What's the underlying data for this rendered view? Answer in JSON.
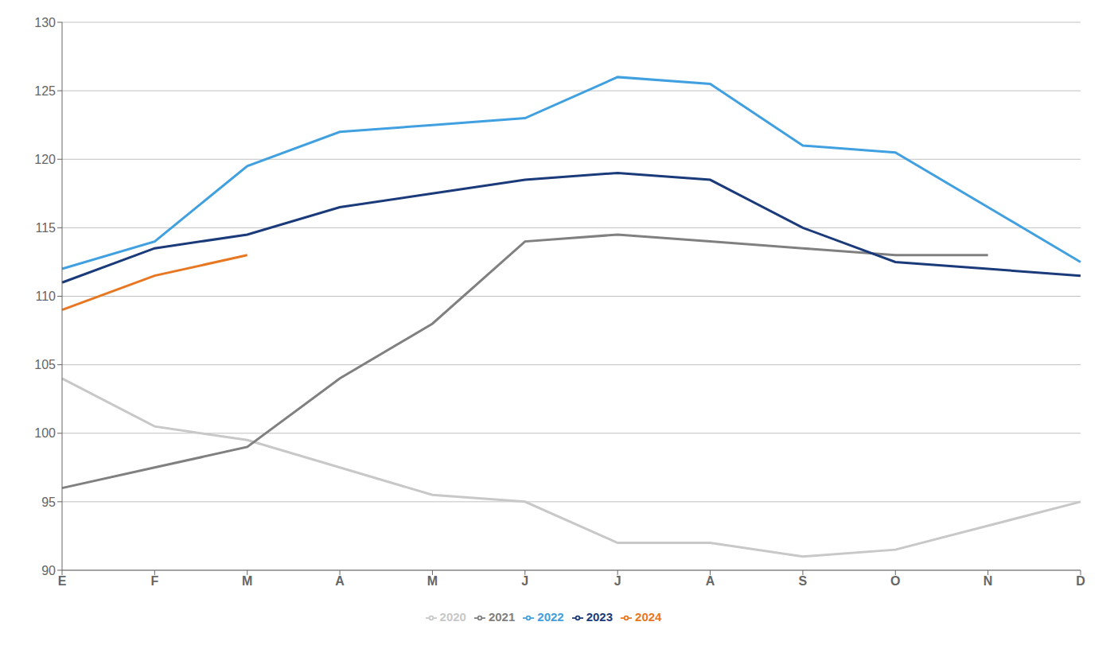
{
  "chart_data": {
    "type": "line",
    "categories": [
      "E",
      "F",
      "M",
      "A",
      "M",
      "J",
      "J",
      "A",
      "S",
      "O",
      "N",
      "D"
    ],
    "series": [
      {
        "name": "2020",
        "color": "#c8c8c8",
        "values": [
          104.0,
          100.5,
          99.5,
          97.5,
          95.5,
          95.0,
          92.0,
          92.0,
          91.0,
          91.5,
          null,
          95.0
        ]
      },
      {
        "name": "2021",
        "color": "#808080",
        "values": [
          96.0,
          97.5,
          99.0,
          104.0,
          108.0,
          114.0,
          114.5,
          114.0,
          113.5,
          113.0,
          113.0,
          null
        ]
      },
      {
        "name": "2022",
        "color": "#41a0e0",
        "values": [
          112.0,
          114.0,
          119.5,
          122.0,
          122.5,
          123.0,
          126.0,
          125.5,
          121.0,
          120.5,
          116.5,
          112.5
        ]
      },
      {
        "name": "2023",
        "color": "#1a3a7a",
        "values": [
          111.0,
          113.5,
          114.5,
          116.5,
          117.5,
          118.5,
          119.0,
          118.5,
          115.0,
          112.5,
          112.0,
          111.5
        ]
      },
      {
        "name": "2024",
        "color": "#e87722",
        "values": [
          109.0,
          111.5,
          113.0,
          null,
          null,
          null,
          null,
          null,
          null,
          null,
          null,
          null
        ]
      }
    ],
    "ylim": [
      90,
      130
    ],
    "yticks": [
      90,
      95,
      100,
      105,
      110,
      115,
      120,
      125,
      130
    ],
    "grid": true,
    "legend": "bottom"
  }
}
